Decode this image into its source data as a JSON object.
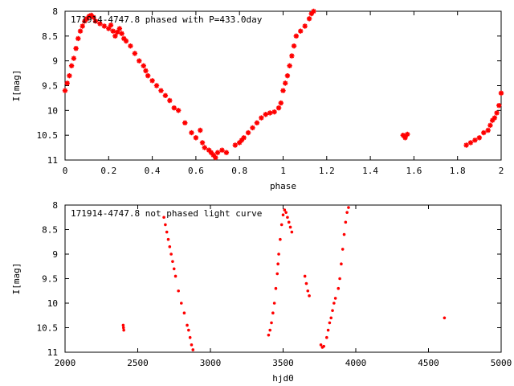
{
  "chart_data": [
    {
      "type": "scatter",
      "title": "171914-4747.8 phased with P=433.0day",
      "xlabel": "phase",
      "ylabel": "I[mag]",
      "xlim": [
        0,
        2
      ],
      "ylim": [
        8,
        11
      ],
      "y_inverted": true,
      "x_ticks": [
        "0",
        "0.2",
        "0.4",
        "0.6",
        "0.8",
        "1",
        "1.2",
        "1.4",
        "1.6",
        "1.8",
        "2"
      ],
      "y_ticks": [
        "8",
        "8.5",
        "9",
        "9.5",
        "10",
        "10.5",
        "11"
      ],
      "marker": "star",
      "color": "#ff0000",
      "points": [
        [
          0.0,
          9.6
        ],
        [
          0.01,
          9.45
        ],
        [
          0.02,
          9.3
        ],
        [
          0.03,
          9.1
        ],
        [
          0.04,
          8.95
        ],
        [
          0.05,
          8.75
        ],
        [
          0.06,
          8.55
        ],
        [
          0.07,
          8.4
        ],
        [
          0.08,
          8.3
        ],
        [
          0.09,
          8.2
        ],
        [
          0.1,
          8.15
        ],
        [
          0.11,
          8.1
        ],
        [
          0.12,
          8.08
        ],
        [
          0.13,
          8.12
        ],
        [
          0.14,
          8.2
        ],
        [
          0.16,
          8.25
        ],
        [
          0.18,
          8.3
        ],
        [
          0.2,
          8.35
        ],
        [
          0.21,
          8.28
        ],
        [
          0.22,
          8.4
        ],
        [
          0.23,
          8.5
        ],
        [
          0.24,
          8.42
        ],
        [
          0.25,
          8.35
        ],
        [
          0.26,
          8.45
        ],
        [
          0.27,
          8.55
        ],
        [
          0.28,
          8.6
        ],
        [
          0.3,
          8.7
        ],
        [
          0.32,
          8.85
        ],
        [
          0.34,
          9.0
        ],
        [
          0.36,
          9.1
        ],
        [
          0.37,
          9.2
        ],
        [
          0.38,
          9.3
        ],
        [
          0.4,
          9.4
        ],
        [
          0.42,
          9.5
        ],
        [
          0.44,
          9.6
        ],
        [
          0.46,
          9.7
        ],
        [
          0.48,
          9.8
        ],
        [
          0.5,
          9.95
        ],
        [
          0.52,
          10.0
        ],
        [
          0.55,
          10.25
        ],
        [
          0.58,
          10.45
        ],
        [
          0.6,
          10.55
        ],
        [
          0.62,
          10.4
        ],
        [
          0.63,
          10.65
        ],
        [
          0.64,
          10.75
        ],
        [
          0.66,
          10.8
        ],
        [
          0.67,
          10.85
        ],
        [
          0.68,
          10.9
        ],
        [
          0.69,
          10.95
        ],
        [
          0.7,
          10.85
        ],
        [
          0.72,
          10.8
        ],
        [
          0.74,
          10.85
        ],
        [
          0.78,
          10.7
        ],
        [
          0.8,
          10.65
        ],
        [
          0.81,
          10.6
        ],
        [
          0.82,
          10.55
        ],
        [
          0.84,
          10.45
        ],
        [
          0.86,
          10.35
        ],
        [
          0.88,
          10.25
        ],
        [
          0.9,
          10.15
        ],
        [
          0.92,
          10.08
        ],
        [
          0.94,
          10.05
        ],
        [
          0.96,
          10.03
        ],
        [
          0.98,
          9.95
        ],
        [
          0.99,
          9.85
        ],
        [
          1.0,
          9.6
        ],
        [
          1.01,
          9.45
        ],
        [
          1.02,
          9.3
        ],
        [
          1.03,
          9.1
        ],
        [
          1.04,
          8.9
        ],
        [
          1.05,
          8.7
        ],
        [
          1.06,
          8.5
        ],
        [
          1.08,
          8.4
        ],
        [
          1.1,
          8.3
        ],
        [
          1.12,
          8.15
        ],
        [
          1.13,
          8.05
        ],
        [
          1.14,
          8.0
        ],
        [
          1.55,
          10.5
        ],
        [
          1.56,
          10.55
        ],
        [
          1.57,
          10.48
        ],
        [
          1.84,
          10.7
        ],
        [
          1.86,
          10.65
        ],
        [
          1.88,
          10.6
        ],
        [
          1.9,
          10.55
        ],
        [
          1.92,
          10.45
        ],
        [
          1.94,
          10.4
        ],
        [
          1.95,
          10.3
        ],
        [
          1.96,
          10.2
        ],
        [
          1.97,
          10.15
        ],
        [
          1.98,
          10.05
        ],
        [
          1.99,
          9.9
        ],
        [
          2.0,
          9.65
        ]
      ]
    },
    {
      "type": "scatter",
      "title": "171914-4747.8 not phased light curve",
      "xlabel": "hjd0",
      "ylabel": "I[mag]",
      "xlim": [
        2000,
        5000
      ],
      "ylim": [
        8,
        11
      ],
      "y_inverted": true,
      "x_ticks": [
        "2000",
        "2500",
        "3000",
        "3500",
        "4000",
        "4500",
        "5000"
      ],
      "y_ticks": [
        "8",
        "8.5",
        "9",
        "9.5",
        "10",
        "10.5",
        "11"
      ],
      "marker": "dot",
      "color": "#ff0000",
      "points": [
        [
          2400,
          10.45
        ],
        [
          2402,
          10.5
        ],
        [
          2404,
          10.55
        ],
        [
          2680,
          8.25
        ],
        [
          2690,
          8.4
        ],
        [
          2700,
          8.55
        ],
        [
          2710,
          8.7
        ],
        [
          2720,
          8.85
        ],
        [
          2730,
          9.0
        ],
        [
          2740,
          9.15
        ],
        [
          2750,
          9.3
        ],
        [
          2760,
          9.45
        ],
        [
          2780,
          9.75
        ],
        [
          2800,
          10.0
        ],
        [
          2820,
          10.2
        ],
        [
          2840,
          10.45
        ],
        [
          2850,
          10.55
        ],
        [
          2860,
          10.7
        ],
        [
          2870,
          10.85
        ],
        [
          2880,
          10.95
        ],
        [
          3400,
          10.65
        ],
        [
          3410,
          10.55
        ],
        [
          3420,
          10.4
        ],
        [
          3430,
          10.2
        ],
        [
          3440,
          10.0
        ],
        [
          3450,
          9.7
        ],
        [
          3460,
          9.4
        ],
        [
          3465,
          9.2
        ],
        [
          3470,
          9.0
        ],
        [
          3480,
          8.7
        ],
        [
          3490,
          8.4
        ],
        [
          3500,
          8.2
        ],
        [
          3510,
          8.1
        ],
        [
          3520,
          8.15
        ],
        [
          3530,
          8.25
        ],
        [
          3540,
          8.35
        ],
        [
          3550,
          8.45
        ],
        [
          3560,
          8.55
        ],
        [
          3650,
          9.45
        ],
        [
          3660,
          9.6
        ],
        [
          3670,
          9.75
        ],
        [
          3680,
          9.85
        ],
        [
          3760,
          10.85
        ],
        [
          3770,
          10.9
        ],
        [
          3780,
          10.88
        ],
        [
          3800,
          10.7
        ],
        [
          3810,
          10.55
        ],
        [
          3820,
          10.4
        ],
        [
          3830,
          10.3
        ],
        [
          3840,
          10.15
        ],
        [
          3850,
          10.0
        ],
        [
          3860,
          9.9
        ],
        [
          3880,
          9.7
        ],
        [
          3890,
          9.5
        ],
        [
          3900,
          9.2
        ],
        [
          3910,
          8.9
        ],
        [
          3920,
          8.6
        ],
        [
          3930,
          8.35
        ],
        [
          3940,
          8.15
        ],
        [
          3950,
          8.05
        ],
        [
          4610,
          10.3
        ]
      ]
    }
  ]
}
